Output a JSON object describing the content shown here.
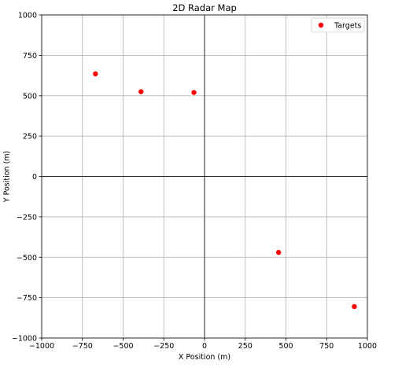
{
  "chart_data": {
    "type": "scatter",
    "title": "2D Radar Map",
    "xlabel": "X Position (m)",
    "ylabel": "Y Position (m)",
    "xlim": [
      -1000,
      1000
    ],
    "ylim": [
      -1000,
      1000
    ],
    "xticks": [
      -1000,
      -750,
      -500,
      -250,
      0,
      250,
      500,
      750,
      1000
    ],
    "yticks": [
      -1000,
      -750,
      -500,
      -250,
      0,
      250,
      500,
      750,
      1000
    ],
    "xtick_labels": [
      "−1000",
      "−750",
      "−500",
      "−250",
      "0",
      "250",
      "500",
      "750",
      "1000"
    ],
    "ytick_labels": [
      "−1000",
      "−750",
      "−500",
      "−250",
      "0",
      "250",
      "500",
      "750",
      "1000"
    ],
    "grid": true,
    "zero_lines": true,
    "legend_position": "top-right",
    "series": [
      {
        "name": "Targets",
        "color": "#ff0000",
        "x": [
          -670,
          -390,
          -65,
          455,
          920
        ],
        "y": [
          635,
          525,
          520,
          -470,
          -805
        ]
      }
    ]
  }
}
